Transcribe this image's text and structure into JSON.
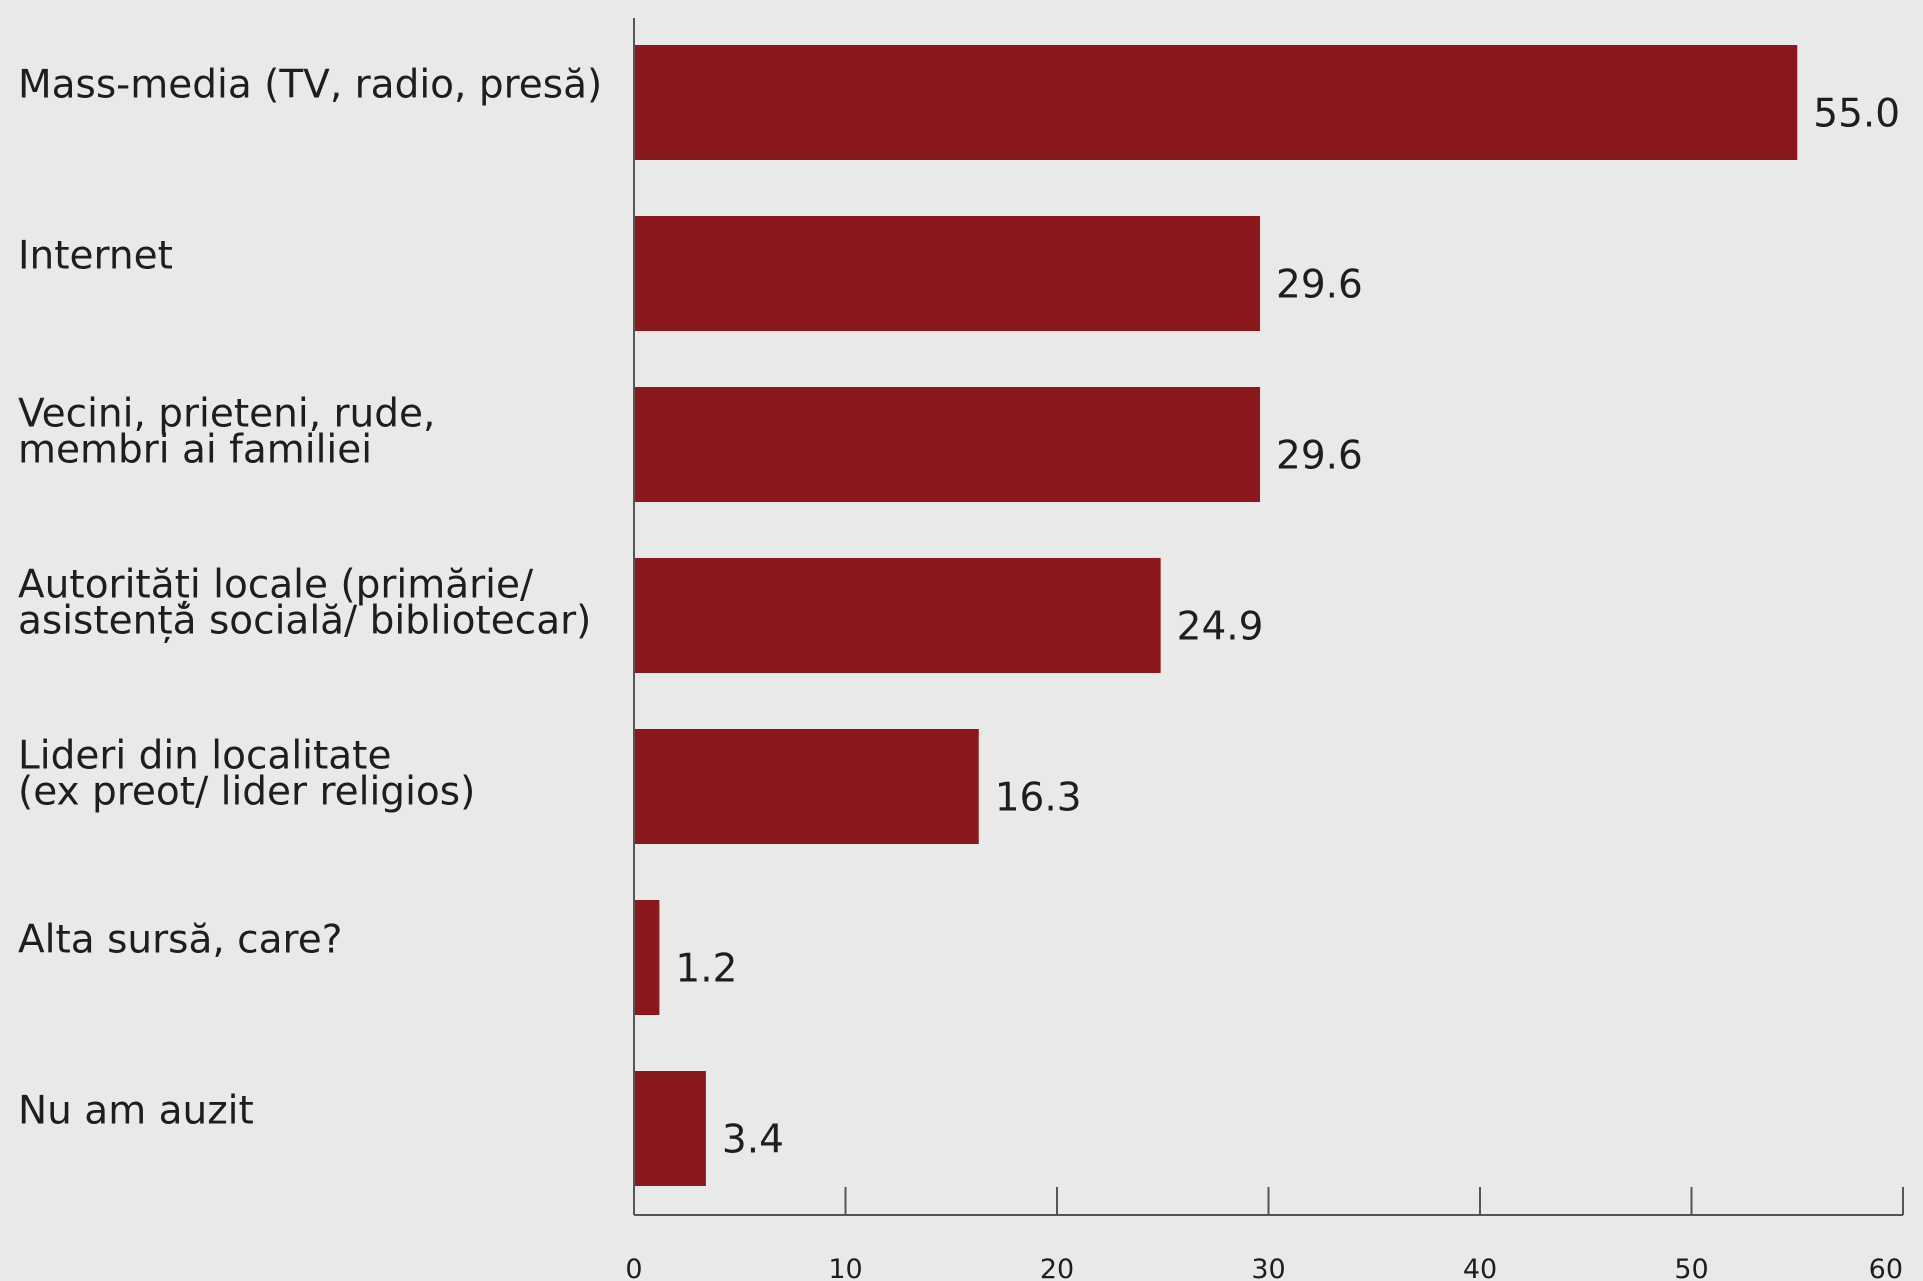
{
  "chart_data": {
    "type": "bar",
    "orientation": "horizontal",
    "categories": [
      [
        "Mass-media (TV, radio, presă)"
      ],
      [
        "Internet"
      ],
      [
        "Vecini, prieteni, rude,",
        "membri ai familiei"
      ],
      [
        "Autorități locale (primărie/",
        "asistență socială/ bibliotecar)"
      ],
      [
        "Lideri din localitate",
        "(ex preot/ lider religios)"
      ],
      [
        "Alta sursă, care?"
      ],
      [
        "Nu am auzit"
      ]
    ],
    "values": [
      55.0,
      29.6,
      29.6,
      24.9,
      16.3,
      1.2,
      3.4
    ],
    "value_labels": [
      "55.0",
      "29.6",
      "29.6",
      "24.9",
      "16.3",
      "1.2",
      "3.4"
    ],
    "xlim": [
      0,
      60
    ],
    "xticks": [
      0,
      10,
      20,
      30,
      40,
      50,
      60
    ],
    "title": "",
    "xlabel": "",
    "ylabel": "",
    "grid": false,
    "legend": "none",
    "colors": {
      "bar": "#8b181d",
      "axis": "#555555",
      "text": "#1e1e1e",
      "background": "#e9e9e9"
    }
  }
}
